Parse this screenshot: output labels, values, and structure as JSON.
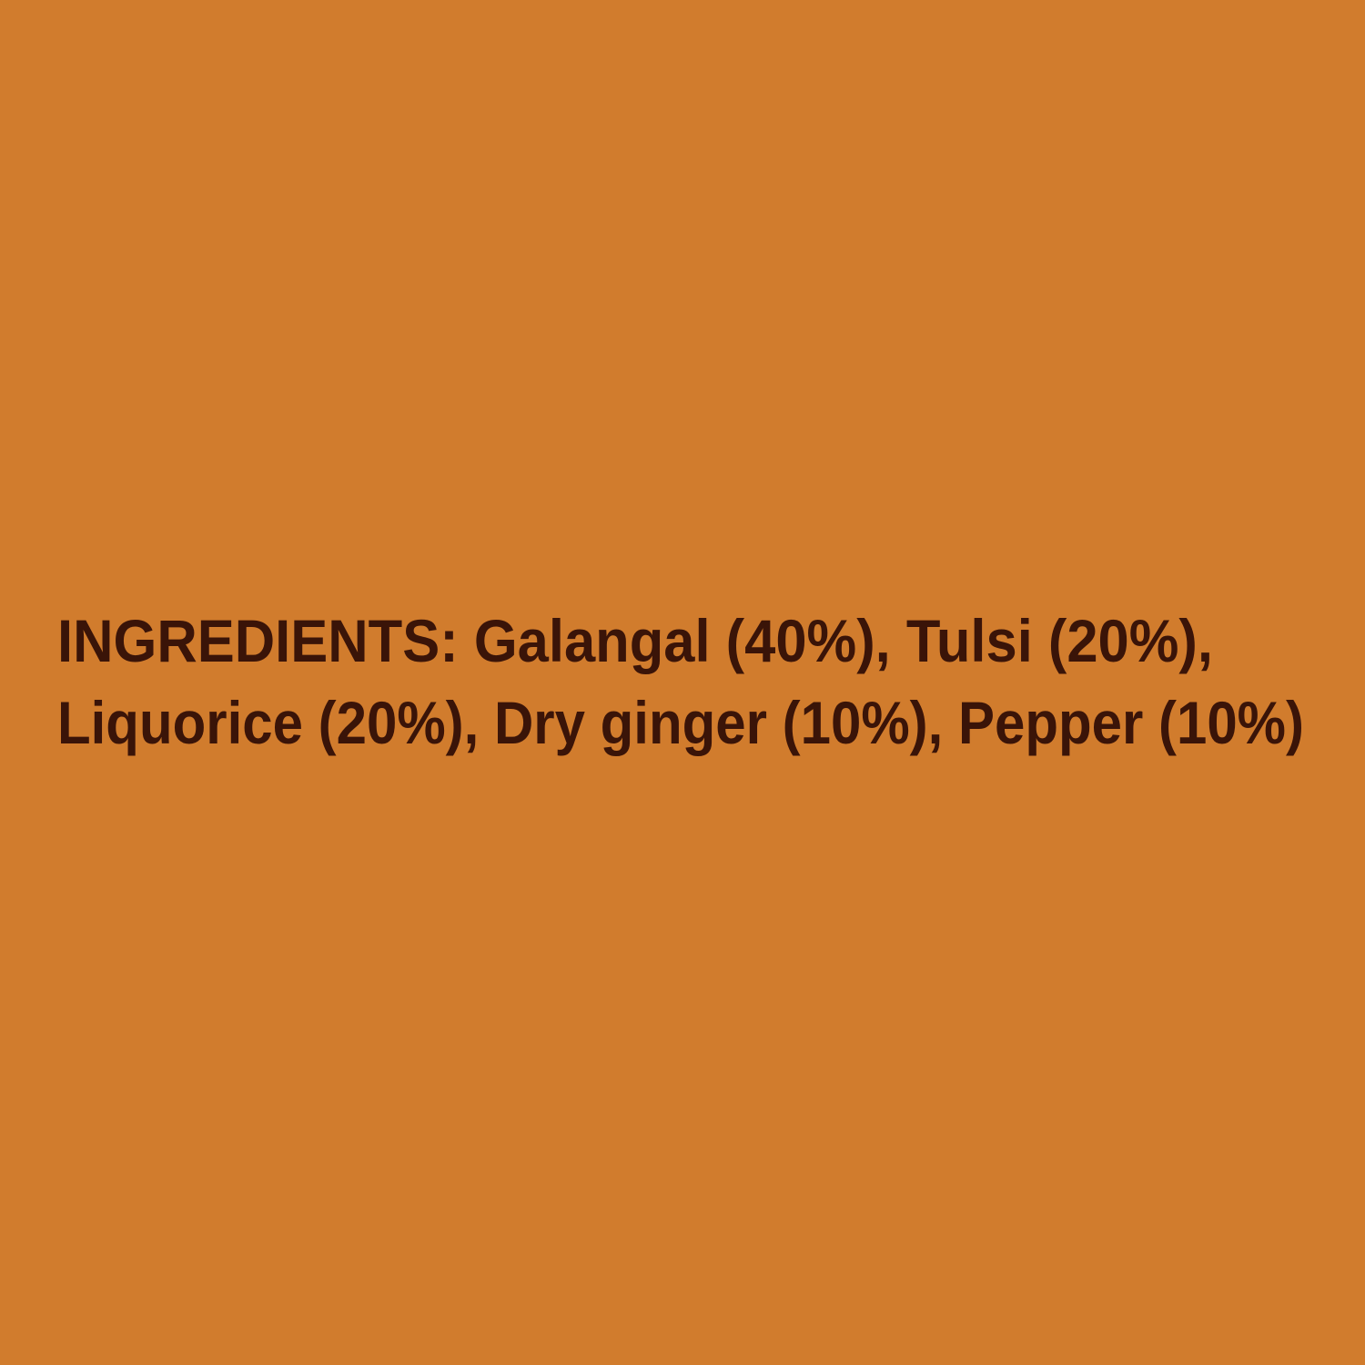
{
  "colors": {
    "background": "#D17C2D",
    "text": "#3A1408"
  },
  "ingredients": {
    "line1": "INGREDIENTS: Galangal (40%), Tulsi (20%),",
    "line2": "Liquorice (20%), Dry ginger (10%), Pepper (10%)"
  }
}
